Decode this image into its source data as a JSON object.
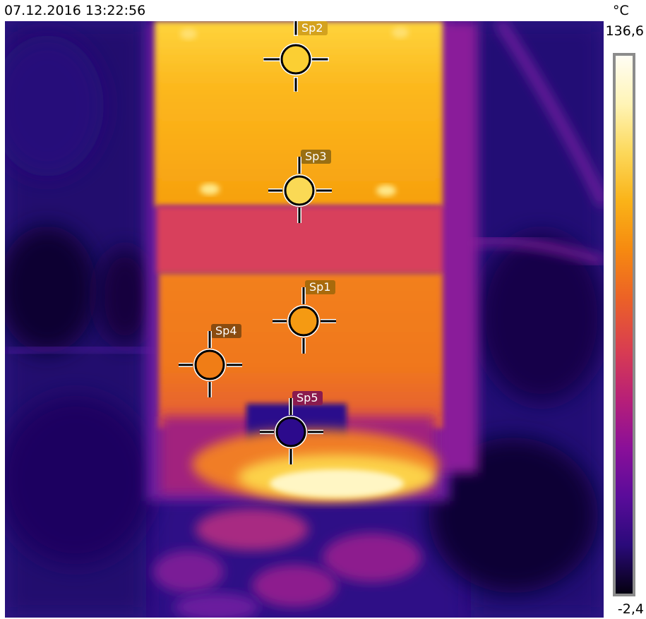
{
  "header": {
    "timestamp": "07.12.2016 13:22:56",
    "unit": "°C"
  },
  "scale": {
    "max": "136,6",
    "min": "-2,4",
    "palette": [
      "#050010",
      "#2a0a7a",
      "#5a0c9a",
      "#8a0f99",
      "#b71f78",
      "#d83c52",
      "#ec6226",
      "#f68a10",
      "#fab318",
      "#fcd85a",
      "#fff4b6",
      "#fffdf4"
    ]
  },
  "spots": [
    {
      "label": "Sp2",
      "label_color": "#d4a21e",
      "fill": "#fbcf33"
    },
    {
      "label": "Sp3",
      "label_color": "#9a6f12",
      "fill": "#fad955"
    },
    {
      "label": "Sp1",
      "label_color": "#a86a0c",
      "fill": "#f59a12"
    },
    {
      "label": "Sp4",
      "label_color": "#8a4c10",
      "fill": "#f07d16"
    },
    {
      "label": "Sp5",
      "label_color": "#8a1b4e",
      "fill": "#2c0a8c"
    }
  ]
}
